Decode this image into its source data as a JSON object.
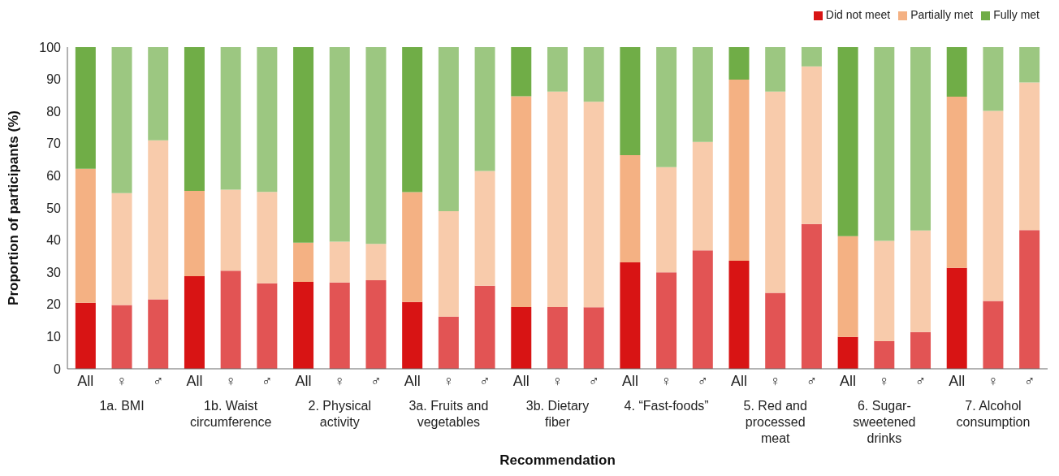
{
  "chart_data": {
    "type": "bar",
    "stacked": true,
    "xlabel": "Recommendation",
    "ylabel": "Proportion of participants (%)",
    "categories": [
      "All",
      "♀",
      "♂",
      "All",
      "♀",
      "♂",
      "All",
      "♀",
      "♂",
      "All",
      "♀",
      "♂",
      "All",
      "♀",
      "♂",
      "All",
      "♀",
      "♂",
      "All",
      "♀",
      "♂",
      "All",
      "♀",
      "♂",
      "All",
      "♀",
      "♂"
    ],
    "series": [
      {
        "name": "Did not meet",
        "color": "#d81414",
        "colors": [
          "#d81414",
          "#e25454",
          "#e25454",
          "#d81414",
          "#e25454",
          "#e25454",
          "#d81414",
          "#e25454",
          "#e25454",
          "#d81414",
          "#e25454",
          "#e25454",
          "#d81414",
          "#e25454",
          "#e25454",
          "#d81414",
          "#e25454",
          "#e25454",
          "#d81414",
          "#e25454",
          "#e25454",
          "#d81414",
          "#e25454",
          "#e25454",
          "#d81414",
          "#e25454",
          "#e25454"
        ],
        "values": [
          20.5,
          19.8,
          21.6,
          28.8,
          30.5,
          26.6,
          27.0,
          26.8,
          27.5,
          20.8,
          16.2,
          25.8,
          19.2,
          19.2,
          19.1,
          33.1,
          30.0,
          36.8,
          33.6,
          23.6,
          45.0,
          9.9,
          8.6,
          11.4,
          31.4,
          21.1,
          43.1
        ]
      },
      {
        "name": "Partially met",
        "color": "#f4b183",
        "colors": [
          "#f4b183",
          "#f8cbab",
          "#f8cbab",
          "#f4b183",
          "#f8cbab",
          "#f8cbab",
          "#f4b183",
          "#f8cbab",
          "#f8cbab",
          "#f4b183",
          "#f8cbab",
          "#f8cbab",
          "#f4b183",
          "#f8cbab",
          "#f8cbab",
          "#f4b183",
          "#f8cbab",
          "#f8cbab",
          "#f4b183",
          "#f8cbab",
          "#f8cbab",
          "#f4b183",
          "#f8cbab",
          "#f8cbab",
          "#f4b183",
          "#f8cbab",
          "#f8cbab"
        ],
        "values": [
          41.7,
          34.8,
          49.4,
          26.5,
          25.2,
          28.4,
          12.2,
          12.7,
          11.3,
          34.1,
          32.8,
          35.7,
          65.5,
          67.0,
          63.9,
          33.3,
          32.7,
          33.7,
          56.3,
          62.6,
          49.0,
          31.3,
          31.2,
          31.6,
          53.2,
          59.1,
          45.9
        ]
      },
      {
        "name": "Fully met",
        "color": "#70ad47",
        "colors": [
          "#70ad47",
          "#9cc781",
          "#9cc781",
          "#70ad47",
          "#9cc781",
          "#9cc781",
          "#70ad47",
          "#9cc781",
          "#9cc781",
          "#70ad47",
          "#9cc781",
          "#9cc781",
          "#70ad47",
          "#9cc781",
          "#9cc781",
          "#70ad47",
          "#9cc781",
          "#9cc781",
          "#70ad47",
          "#9cc781",
          "#9cc781",
          "#70ad47",
          "#9cc781",
          "#9cc781",
          "#70ad47",
          "#9cc781",
          "#9cc781"
        ],
        "values": [
          37.8,
          45.4,
          29.0,
          44.7,
          44.3,
          45.0,
          60.8,
          60.5,
          61.2,
          45.1,
          51.0,
          38.5,
          15.3,
          13.8,
          17.0,
          33.6,
          37.3,
          29.5,
          10.1,
          13.8,
          6.0,
          58.8,
          60.2,
          57.0,
          15.4,
          19.8,
          11.0
        ]
      }
    ],
    "annotations": [
      "1a. BMI",
      "1b. Waist\ncircumference",
      "2. Physical\nactivity",
      "3a. Fruits and\nvegetables",
      "3b. Dietary\nfiber",
      "4. “Fast-foods”",
      "5. Red and\nprocessed\nmeat",
      "6. Sugar-\nsweetened\ndrinks",
      "7. Alcohol\nconsumption"
    ],
    "ylim": [
      0,
      100
    ],
    "yticks": [
      0,
      10,
      20,
      30,
      40,
      50,
      60,
      70,
      80,
      90,
      100
    ],
    "grid": false,
    "legend": "top right"
  }
}
